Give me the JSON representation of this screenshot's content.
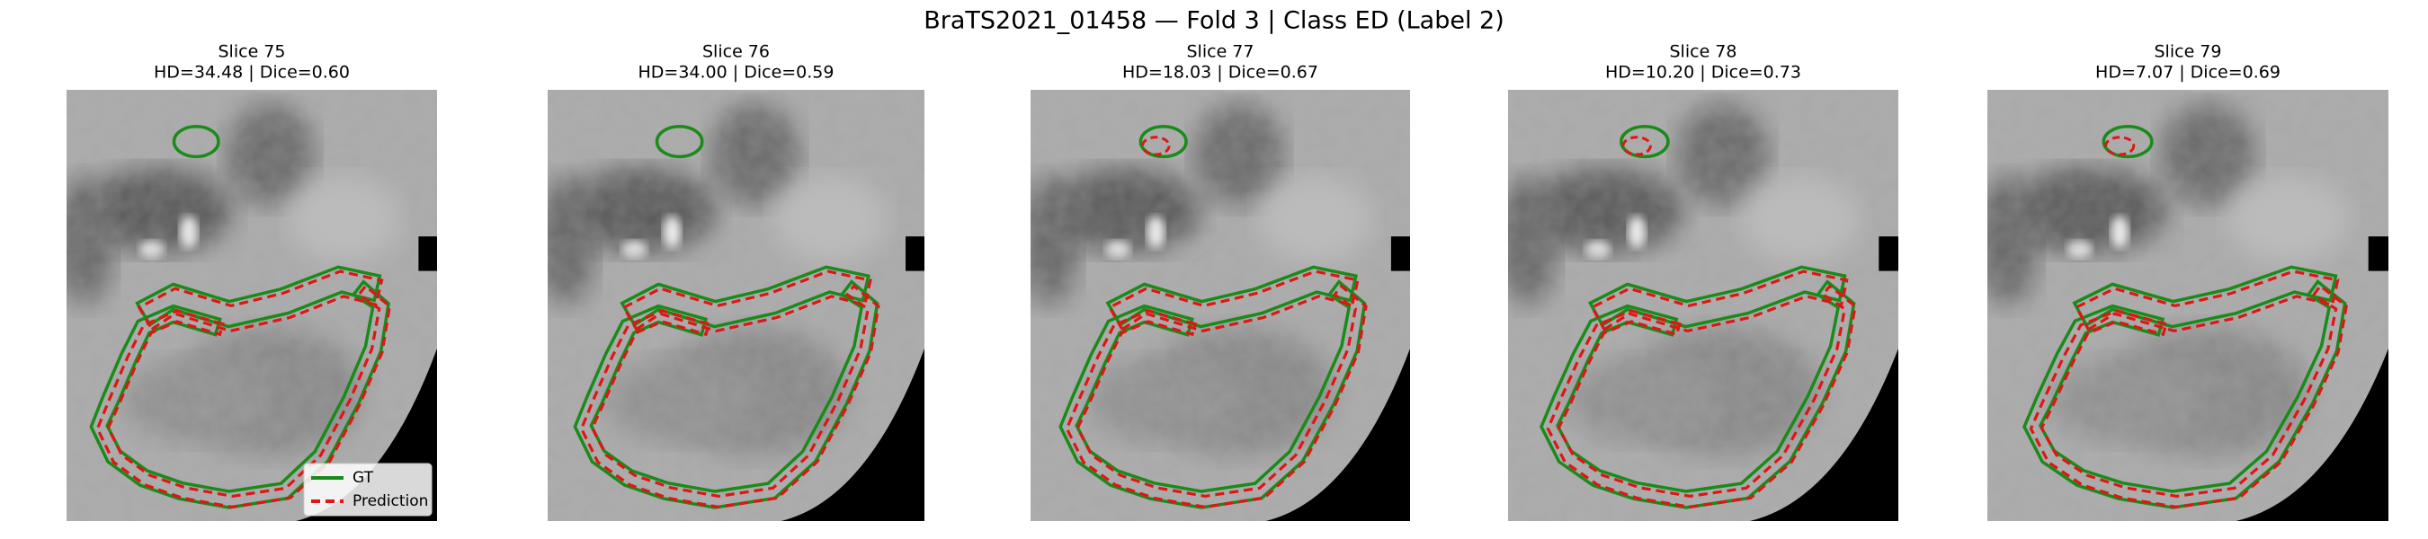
{
  "title": "BraTS2021_01458 — Fold 3 | Class ED (Label 2)",
  "panels": [
    {
      "title": "Slice 75",
      "metrics": "HD=34.48 | Dice=0.60"
    },
    {
      "title": "Slice 76",
      "metrics": "HD=34.00 | Dice=0.59"
    },
    {
      "title": "Slice 77",
      "metrics": "HD=18.03 | Dice=0.67"
    },
    {
      "title": "Slice 78",
      "metrics": "HD=10.20 | Dice=0.73"
    },
    {
      "title": "Slice 79",
      "metrics": "HD=7.07 | Dice=0.69"
    }
  ],
  "legend": {
    "entries": [
      "GT",
      "Prediction"
    ]
  }
}
